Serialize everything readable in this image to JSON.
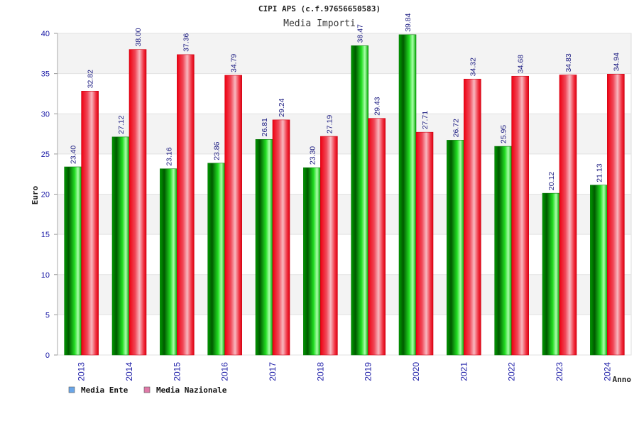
{
  "chart_data": {
    "type": "bar",
    "title": "CIPI APS (c.f.97656650583)",
    "subtitle": "Media Importi",
    "xlabel": "Anno",
    "ylabel": "Euro",
    "ylim": [
      0,
      40
    ],
    "yticks": [
      0,
      5,
      10,
      15,
      20,
      25,
      30,
      35,
      40
    ],
    "grid": true,
    "legend_position": "bottom-left",
    "categories": [
      "2013",
      "2014",
      "2015",
      "2016",
      "2017",
      "2018",
      "2019",
      "2020",
      "2021",
      "2022",
      "2023",
      "2024"
    ],
    "series": [
      {
        "name": "Media Ente",
        "color": "#00aa00",
        "legend_color": "#6aa6e8",
        "values": [
          23.4,
          27.12,
          23.16,
          23.86,
          26.81,
          23.3,
          38.47,
          39.84,
          26.72,
          25.95,
          20.12,
          21.13
        ],
        "labels": [
          "23.40",
          "27.12",
          "23.16",
          "23.86",
          "26.81",
          "23.30",
          "38.47",
          "39.84",
          "26.72",
          "25.95",
          "20.12",
          "21.13"
        ]
      },
      {
        "name": "Media Nazionale",
        "color": "#ee1122",
        "legend_color": "#e07aa8",
        "values": [
          32.82,
          38.0,
          37.36,
          34.79,
          29.24,
          27.19,
          29.43,
          27.71,
          34.32,
          34.68,
          34.83,
          34.94
        ],
        "labels": [
          "32.82",
          "38.00",
          "37.36",
          "34.79",
          "29.24",
          "27.19",
          "29.43",
          "27.71",
          "34.32",
          "34.68",
          "34.83",
          "34.94"
        ]
      }
    ]
  }
}
